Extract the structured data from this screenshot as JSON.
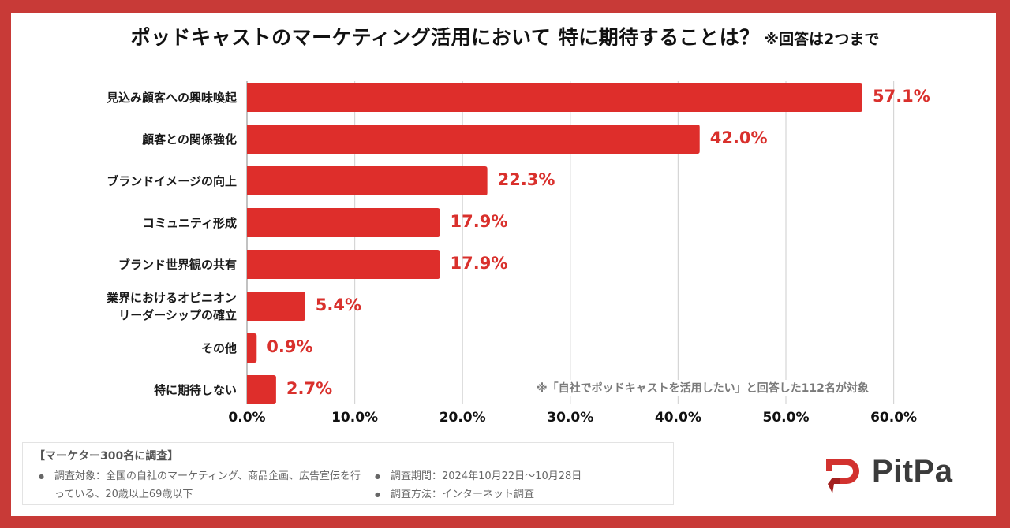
{
  "title": {
    "main": "ポッドキャストのマーケティング活用において 特に期待することは？",
    "note": "※回答は2つまで"
  },
  "colors": {
    "frame": "#c83a37",
    "bar": "#de2e2b",
    "value_label": "#d9302c",
    "grid": "#d6d6d6",
    "axis": "#9a9a9a"
  },
  "chart_data": {
    "type": "bar",
    "orientation": "horizontal",
    "title": "ポッドキャストのマーケティング活用において 特に期待することは？ ※回答は2つまで",
    "xlabel": "",
    "ylabel": "",
    "xlim": [
      0,
      60
    ],
    "grid": true,
    "categories": [
      "見込み顧客への興味喚起",
      "顧客との関係強化",
      "ブランドイメージの向上",
      "コミュニティ形成",
      "ブランド世界観の共有",
      "業界におけるオピニオン\nリーダーシップの確立",
      "その他",
      "特に期待しない"
    ],
    "values": [
      57.1,
      42.0,
      22.3,
      17.9,
      17.9,
      5.4,
      0.9,
      2.7
    ],
    "value_labels": [
      "57.1%",
      "42.0%",
      "22.3%",
      "17.9%",
      "17.9%",
      "5.4%",
      "0.9%",
      "2.7%"
    ],
    "ticks": [
      0,
      10,
      20,
      30,
      40,
      50,
      60
    ],
    "tick_labels": [
      "0.0%",
      "10.0%",
      "20.0%",
      "30.0%",
      "40.0%",
      "50.0%",
      "60.0%"
    ],
    "annotation": "※「自社でポッドキャストを活用したい」と回答した112名が対象"
  },
  "survey_info": {
    "heading": "【マーケター300名に調査】",
    "target": "調査対象：全国の自社のマーケティング、商品企画、広告宣伝を行っている、20歳以上69歳以下",
    "period": "調査期間：2024年10月22日〜10月28日",
    "method": "調査方法：インターネット調査"
  },
  "logo": {
    "text": "PitPa"
  }
}
